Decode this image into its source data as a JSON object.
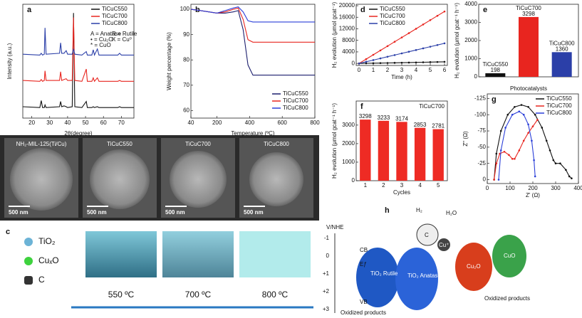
{
  "chart_data": [
    {
      "type": "line",
      "label": "a",
      "xlabel": "2θ(degree)",
      "ylabel": "Intensity (a.u.)",
      "legend": "upper right",
      "annotations": [
        "A = Anatase",
        "R = Rutile",
        "• = Cu₂O",
        "X = Cu⁰",
        "* = CuO"
      ],
      "x": [
        15,
        24.5,
        25.3,
        26,
        27,
        27.4,
        28,
        35.5,
        36.1,
        36.7,
        38,
        39.2,
        40,
        42.6,
        43.3,
        44,
        48,
        50.4,
        51,
        53.5,
        54.3,
        55,
        56.6,
        57.5,
        68,
        69,
        70,
        77
      ],
      "xlim": [
        15,
        77
      ],
      "xticks": [
        20,
        30,
        40,
        50,
        60,
        70
      ],
      "ylim": [
        0,
        13
      ],
      "series": [
        {
          "name": "TiCuC550",
          "color": "#111111",
          "values": [
            1.3,
            1.2,
            2.0,
            1.2,
            1.2,
            1.5,
            1.2,
            1.3,
            1.9,
            1.3,
            1.4,
            1.3,
            1.2,
            1.3,
            12.0,
            1.3,
            1.2,
            1.9,
            1.2,
            1.2,
            1.3,
            1.2,
            1.3,
            1.2,
            1.2,
            1.3,
            1.2,
            1.2
          ]
        },
        {
          "name": "TiCuC700",
          "color": "#e8251f",
          "values": [
            4.3,
            4.2,
            4.4,
            4.2,
            4.3,
            5.4,
            4.3,
            4.3,
            5.3,
            4.3,
            4.4,
            4.5,
            4.3,
            4.3,
            11.5,
            4.3,
            4.2,
            5.6,
            4.2,
            4.2,
            4.6,
            4.2,
            4.6,
            4.2,
            4.2,
            4.3,
            4.2,
            4.2
          ]
        },
        {
          "name": "TiCuC800",
          "color": "#2b3fa8",
          "values": [
            7.3,
            7.2,
            7.4,
            7.2,
            7.3,
            10.3,
            7.3,
            7.4,
            8.6,
            7.4,
            7.4,
            7.7,
            7.3,
            7.3,
            7.9,
            7.3,
            7.2,
            7.6,
            7.2,
            7.2,
            7.8,
            7.2,
            7.9,
            7.2,
            7.2,
            7.4,
            7.2,
            7.2
          ]
        }
      ]
    },
    {
      "type": "line",
      "label": "b",
      "xlabel": "Temperature (ºC)",
      "ylabel": "Weight percentage (%)",
      "legend": "lower right",
      "x": [
        40,
        100,
        200,
        250,
        300,
        330,
        360,
        390,
        420,
        500,
        600,
        700,
        800
      ],
      "xlim": [
        40,
        800
      ],
      "xticks": [
        40,
        200,
        400,
        600,
        800
      ],
      "ylim": [
        57,
        102
      ],
      "yticks": [
        60,
        70,
        80,
        90,
        100
      ],
      "series": [
        {
          "name": "TiCuC550",
          "color": "#1c1f6e",
          "values": [
            100,
            99.5,
            98.5,
            98.5,
            99,
            99.5,
            92,
            78,
            74,
            74,
            74,
            74,
            74
          ]
        },
        {
          "name": "TiCuC700",
          "color": "#e8251f",
          "values": [
            100,
            99.5,
            98.5,
            99,
            100,
            100.5,
            96,
            88,
            87,
            87,
            87,
            87,
            87
          ]
        },
        {
          "name": "TiCuC800",
          "color": "#2b3fd8",
          "values": [
            100,
            99.5,
            98.5,
            99.5,
            100.5,
            101,
            99,
            95.5,
            95,
            95,
            95,
            95,
            95
          ]
        }
      ]
    },
    {
      "type": "line",
      "label": "d",
      "xlabel": "Time (h)",
      "ylabel": "H₂ evolution (μmol gcat⁻¹)",
      "legend": "upper left",
      "markers": true,
      "x": [
        0,
        0.5,
        1,
        1.5,
        2,
        2.5,
        3,
        3.5,
        4,
        4.5,
        5,
        5.5,
        6
      ],
      "xlim": [
        -0.2,
        6.2
      ],
      "xticks": [
        0,
        1,
        2,
        3,
        4,
        5,
        6
      ],
      "ylim": [
        -700,
        20500
      ],
      "yticks": [
        0,
        4000,
        8000,
        12000,
        16000,
        20000
      ],
      "series": [
        {
          "name": "TiCuC550",
          "color": "#111111",
          "values": [
            0,
            40,
            80,
            120,
            160,
            200,
            250,
            300,
            350,
            400,
            450,
            500,
            550
          ]
        },
        {
          "name": "TiCuC700",
          "color": "#e8251f",
          "values": [
            0,
            1500,
            3000,
            4500,
            6000,
            7500,
            9000,
            10500,
            12000,
            13500,
            15000,
            16500,
            18000
          ]
        },
        {
          "name": "TiCuC800",
          "color": "#2b3fa8",
          "values": [
            0,
            580,
            1160,
            1740,
            2320,
            2900,
            3480,
            4060,
            4640,
            5220,
            5800,
            6380,
            6960
          ]
        }
      ]
    },
    {
      "type": "bar",
      "label": "e",
      "xlabel": "Photocatalysts",
      "ylabel": "H₂ evolution (μmol gcat⁻¹ h⁻¹)",
      "labels_above": true,
      "categories": [
        "TiCuC550",
        "TiCuC700",
        "TiCuC800"
      ],
      "values": [
        198,
        3298,
        1360
      ],
      "colors": [
        "#111111",
        "#e8251f",
        "#2b3fa8"
      ],
      "ylim": [
        0,
        4000
      ],
      "yticks": [
        0,
        1000,
        2000,
        3000,
        4000
      ]
    },
    {
      "type": "bar",
      "label": "f",
      "xlabel": "Cycles",
      "ylabel": "H₂ evolution (μmol gcat⁻¹ h⁻¹)",
      "annotation": "TiCuC700",
      "categories": [
        "1",
        "2",
        "3",
        "4",
        "5"
      ],
      "values": [
        3298,
        3233,
        3174,
        2853,
        2781
      ],
      "color": "#ee2b24",
      "ylim": [
        0,
        4300
      ],
      "yticks": [
        0,
        1000,
        2000,
        3000
      ]
    },
    {
      "type": "line",
      "label": "g",
      "xlabel": "Z' (Ω)",
      "ylabel": "Z'' (Ω)",
      "legend": "upper right",
      "markers": true,
      "xlim": [
        0,
        400
      ],
      "xticks": [
        0,
        100,
        200,
        300,
        400
      ],
      "ylim": [
        6,
        -132
      ],
      "yticks": [
        0,
        -25,
        -50,
        -75,
        -100,
        -125
      ],
      "series": [
        {
          "name": "TiCuC550",
          "color": "#111111",
          "x": [
            30,
            40,
            60,
            90,
            120,
            150,
            180,
            210,
            240,
            260,
            275,
            290,
            300,
            320,
            345,
            360,
            370
          ],
          "values": [
            0,
            -40,
            -75,
            -100,
            -112,
            -115,
            -112,
            -100,
            -80,
            -60,
            -45,
            -30,
            -25,
            -25,
            -15,
            -5,
            -2
          ]
        },
        {
          "name": "TiCuC700",
          "color": "#e8251f",
          "x": [
            30,
            40,
            55,
            75,
            95,
            110,
            120,
            140,
            160,
            180,
            200,
            220
          ],
          "values": [
            0,
            -25,
            -40,
            -43,
            -38,
            -32,
            -32,
            -45,
            -60,
            -72,
            -82,
            -92
          ]
        },
        {
          "name": "TiCuC800",
          "color": "#2b3fd8",
          "x": [
            50,
            60,
            80,
            110,
            140,
            160,
            180,
            195,
            205,
            210
          ],
          "values": [
            0,
            -45,
            -80,
            -100,
            -105,
            -100,
            -85,
            -60,
            -30,
            -5
          ]
        }
      ]
    }
  ],
  "sem": {
    "panels": [
      {
        "label": "NH₂-MIL-125(Ti/Cu)",
        "scale": "500 nm"
      },
      {
        "label": "TiCuC550",
        "scale": "500 nm"
      },
      {
        "label": "TiCuC700",
        "scale": "500 nm"
      },
      {
        "label": "TiCuC800",
        "scale": "500 nm"
      }
    ]
  },
  "schematic_c": {
    "label": "c",
    "legend": [
      "TiO₂",
      "CuₓO",
      "C"
    ],
    "temperatures": [
      "550 ºC",
      "700 ºC",
      "800 ºC"
    ]
  },
  "schematic_h": {
    "label": "h",
    "axis_title": "V/NHE",
    "axis_ticks": [
      "-1",
      "0",
      "+1",
      "+2",
      "+3"
    ],
    "cb": "CB",
    "vb": "VB",
    "ef": "Eƒ",
    "rutile": "TiO₂ Rutile",
    "anatase": "TiO₂ Anatase",
    "cu2o": "Cu₂O",
    "cuo": "CuO",
    "oxidized_left": "Oxidized products",
    "oxidized_right": "Oxidized products",
    "h2": "H₂",
    "h2o": "H₂O",
    "cu": "Cu⁺",
    "carbon": "C"
  }
}
